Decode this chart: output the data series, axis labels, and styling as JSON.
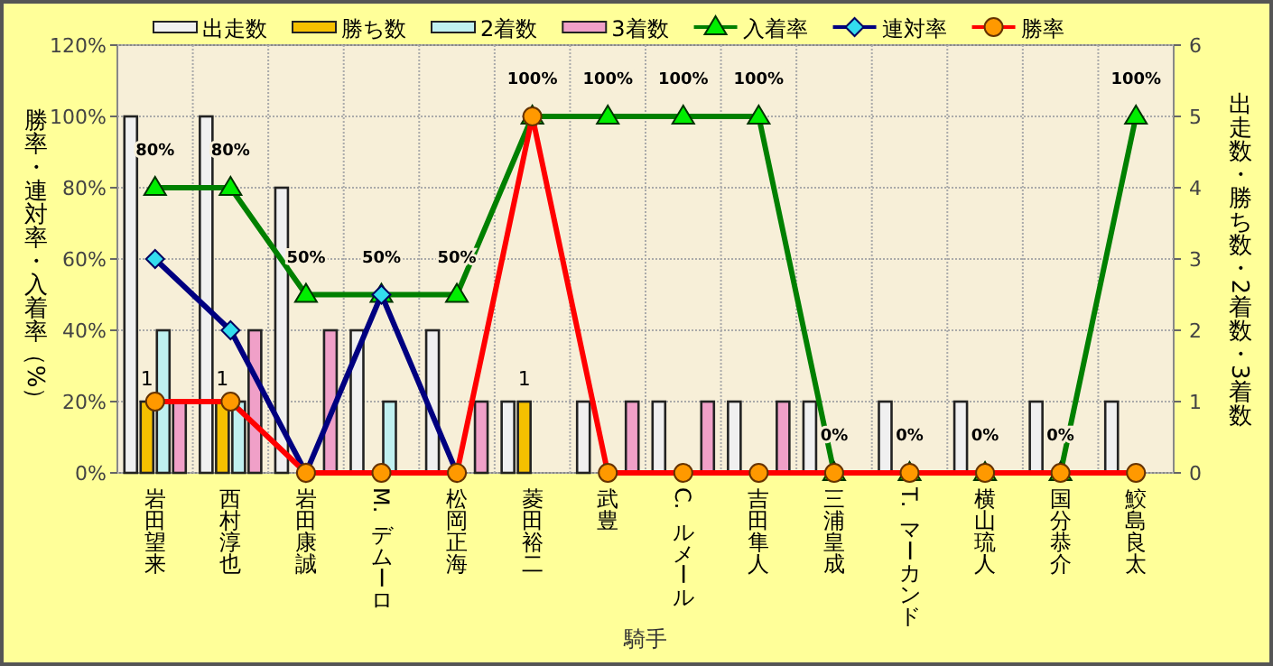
{
  "chart_data": {
    "type": "bar",
    "xlabel": "騎手",
    "ylabel": "勝率・連対率・入着率（%）",
    "y2label": "出走数・勝ち数・2着数・3着数",
    "categories": [
      "岩田望来",
      "西村淳也",
      "岩田康誠",
      "M. デムーロ",
      "松岡正海",
      "菱田裕二",
      "武豊",
      "C. ルメール",
      "吉田隼人",
      "三浦皇成",
      "T. マーカンド",
      "横山琉人",
      "国分恭介",
      "鮫島良太"
    ],
    "ylim": [
      0,
      120
    ],
    "yticks": [
      {
        "value": 0,
        "label": "0%"
      },
      {
        "value": 20,
        "label": "20%"
      },
      {
        "value": 40,
        "label": "40%"
      },
      {
        "value": 60,
        "label": "60%"
      },
      {
        "value": 80,
        "label": "80%"
      },
      {
        "value": 100,
        "label": "100%"
      },
      {
        "value": 120,
        "label": "120%"
      }
    ],
    "y2lim": [
      0,
      6
    ],
    "y2ticks": [
      0,
      1,
      2,
      3,
      4,
      5,
      6
    ],
    "grid": true,
    "legend": "top",
    "series": [
      {
        "name": "出走数",
        "type": "bar",
        "axis": "y2",
        "color": "#f0f0f0",
        "values": [
          5,
          5,
          4,
          2,
          2,
          1,
          1,
          1,
          1,
          1,
          1,
          1,
          1,
          1
        ]
      },
      {
        "name": "勝ち数",
        "type": "bar",
        "axis": "y2",
        "color": "#f5c000",
        "values": [
          1,
          1,
          0,
          0,
          0,
          1,
          0,
          0,
          0,
          0,
          0,
          0,
          0,
          0
        ],
        "value_labels": [
          "1",
          "1",
          null,
          null,
          null,
          "1",
          null,
          null,
          null,
          null,
          null,
          null,
          null,
          null
        ]
      },
      {
        "name": "2着数",
        "type": "bar",
        "axis": "y2",
        "color": "#c0f0f0",
        "values": [
          2,
          1,
          0,
          1,
          0,
          0,
          0,
          0,
          0,
          0,
          0,
          0,
          0,
          0
        ]
      },
      {
        "name": "3着数",
        "type": "bar",
        "axis": "y2",
        "color": "#f0a0c8",
        "values": [
          1,
          2,
          2,
          0,
          1,
          0,
          1,
          1,
          1,
          0,
          0,
          0,
          0,
          0
        ]
      },
      {
        "name": "入着率",
        "type": "line",
        "color": "#008000",
        "marker": "triangle",
        "values": [
          80,
          80,
          50,
          50,
          50,
          100,
          100,
          100,
          100,
          0,
          0,
          0,
          0,
          100
        ],
        "value_labels": [
          "80%",
          "80%",
          "50%",
          "50%",
          "50%",
          "100%",
          "100%",
          "100%",
          "100%",
          "0%",
          "0%",
          "0%",
          "0%",
          "100%"
        ]
      },
      {
        "name": "連対率",
        "type": "line",
        "color": "#000080",
        "marker": "diamond",
        "values": [
          60,
          40,
          0,
          50,
          0,
          null,
          null,
          null,
          null,
          null,
          null,
          null,
          null,
          null
        ]
      },
      {
        "name": "勝率",
        "type": "line",
        "color": "#ff0000",
        "marker": "circle",
        "values": [
          20,
          20,
          0,
          0,
          0,
          100,
          0,
          0,
          0,
          0,
          0,
          0,
          0,
          0
        ]
      }
    ]
  }
}
